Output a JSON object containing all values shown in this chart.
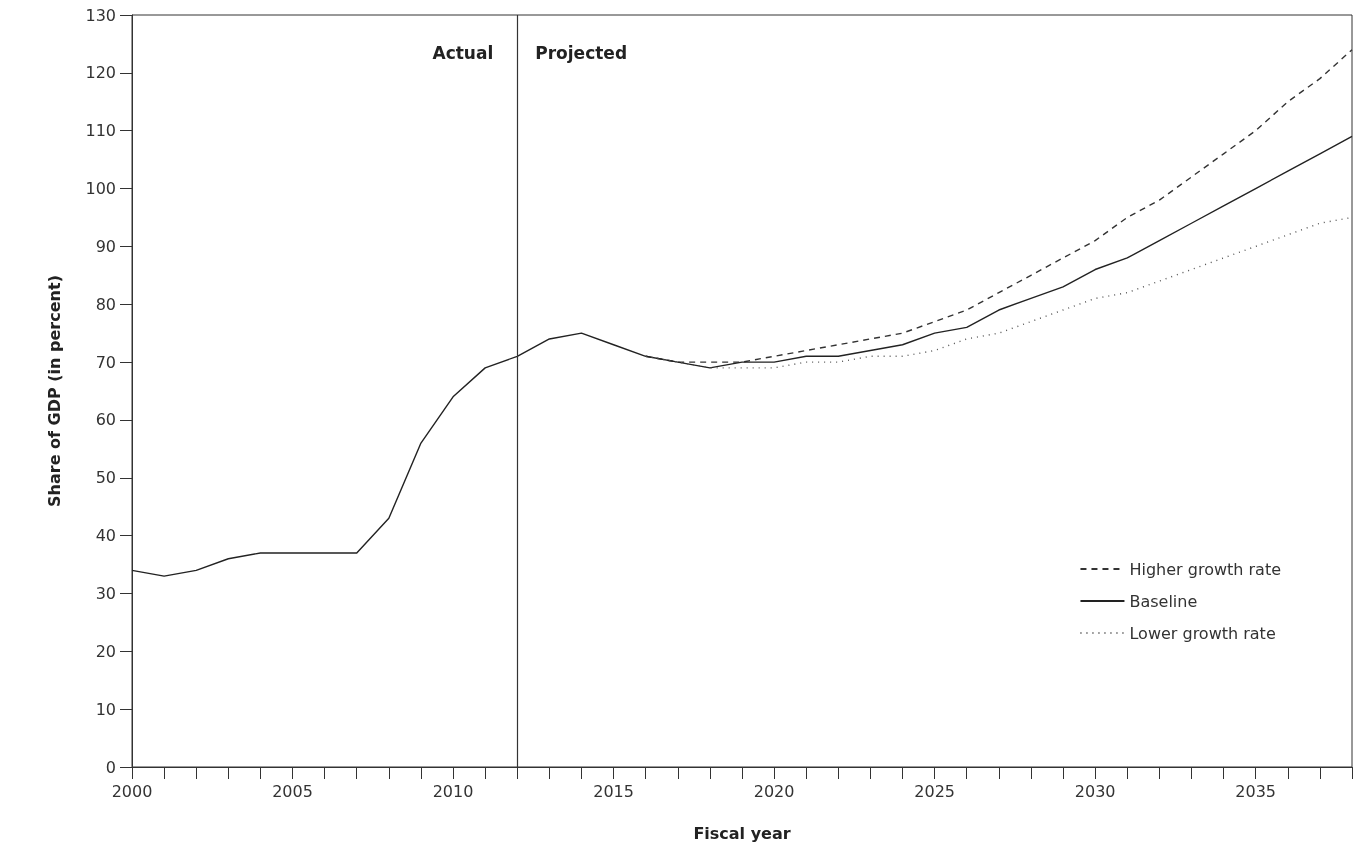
{
  "chart_data": {
    "type": "line",
    "xlabel": "Fiscal year",
    "ylabel": "Share of GDP (in percent)",
    "xlim": [
      2000,
      2038
    ],
    "ylim": [
      0,
      130
    ],
    "xticks": [
      2000,
      {
        "value": 2001,
        "label": null
      },
      {
        "value": 2002,
        "label": null
      },
      {
        "value": 2003,
        "label": null
      },
      {
        "value": 2004,
        "label": null
      },
      2005,
      {
        "value": 2006,
        "label": null
      },
      {
        "value": 2007,
        "label": null
      },
      {
        "value": 2008,
        "label": null
      },
      {
        "value": 2009,
        "label": null
      },
      2010,
      {
        "value": 2011,
        "label": null
      },
      {
        "value": 2012,
        "label": null
      },
      {
        "value": 2013,
        "label": null
      },
      {
        "value": 2014,
        "label": null
      },
      2015,
      {
        "value": 2016,
        "label": null
      },
      {
        "value": 2017,
        "label": null
      },
      {
        "value": 2018,
        "label": null
      },
      {
        "value": 2019,
        "label": null
      },
      2020,
      {
        "value": 2021,
        "label": null
      },
      {
        "value": 2022,
        "label": null
      },
      {
        "value": 2023,
        "label": null
      },
      {
        "value": 2024,
        "label": null
      },
      2025,
      {
        "value": 2026,
        "label": null
      },
      {
        "value": 2027,
        "label": null
      },
      {
        "value": 2028,
        "label": null
      },
      {
        "value": 2029,
        "label": null
      },
      2030,
      {
        "value": 2031,
        "label": null
      },
      {
        "value": 2032,
        "label": null
      },
      {
        "value": 2033,
        "label": null
      },
      {
        "value": 2034,
        "label": null
      },
      2035,
      {
        "value": 2036,
        "label": null
      },
      {
        "value": 2037,
        "label": null
      },
      {
        "value": 2038,
        "label": null
      }
    ],
    "yticks": [
      0,
      10,
      20,
      30,
      40,
      50,
      60,
      70,
      80,
      90,
      100,
      110,
      120,
      130
    ],
    "grid": false,
    "legend": "bottom right",
    "marker": "none",
    "ref_lines": [
      {
        "axis": "x",
        "value": 2012,
        "color": "#333333",
        "line_style": "solid"
      }
    ],
    "annotations": [
      "Actual",
      "Projected"
    ],
    "series": [
      {
        "name": "Higher growth rate",
        "color": "#333333",
        "line_style": "dashed",
        "x": [
          2016,
          2017,
          2018,
          2019,
          2020,
          2021,
          2022,
          2023,
          2024,
          2025,
          2026,
          2027,
          2028,
          2029,
          2030,
          2031,
          2032,
          2033,
          2034,
          2035,
          2036,
          2037,
          2038
        ],
        "values": [
          71,
          70,
          70,
          70,
          71,
          72,
          73,
          74,
          75,
          77,
          79,
          82,
          85,
          88,
          91,
          95,
          98,
          102,
          106,
          110,
          115,
          119,
          124
        ]
      },
      {
        "name": "Baseline",
        "color": "#222222",
        "line_style": "solid",
        "x": [
          2000,
          2001,
          2002,
          2003,
          2004,
          2005,
          2006,
          2007,
          2008,
          2009,
          2010,
          2011,
          2012,
          2013,
          2014,
          2015,
          2016,
          2017,
          2018,
          2019,
          2020,
          2021,
          2022,
          2023,
          2024,
          2025,
          2026,
          2027,
          2028,
          2029,
          2030,
          2031,
          2032,
          2033,
          2034,
          2035,
          2036,
          2037,
          2038
        ],
        "values": [
          34,
          33,
          34,
          36,
          37,
          37,
          37,
          37,
          43,
          56,
          64,
          69,
          71,
          74,
          75,
          73,
          71,
          70,
          69,
          70,
          70,
          71,
          71,
          72,
          73,
          75,
          76,
          79,
          81,
          83,
          86,
          88,
          91,
          94,
          97,
          100,
          103,
          106,
          109
        ]
      },
      {
        "name": "Lower growth rate",
        "color": "#555555",
        "line_style": "dotted",
        "x": [
          2016,
          2017,
          2018,
          2019,
          2020,
          2021,
          2022,
          2023,
          2024,
          2025,
          2026,
          2027,
          2028,
          2029,
          2030,
          2031,
          2032,
          2033,
          2034,
          2035,
          2036,
          2037,
          2038
        ],
        "values": [
          71,
          70,
          69,
          69,
          69,
          70,
          70,
          71,
          71,
          72,
          74,
          75,
          77,
          79,
          81,
          82,
          84,
          86,
          88,
          90,
          92,
          94,
          95
        ]
      }
    ]
  }
}
